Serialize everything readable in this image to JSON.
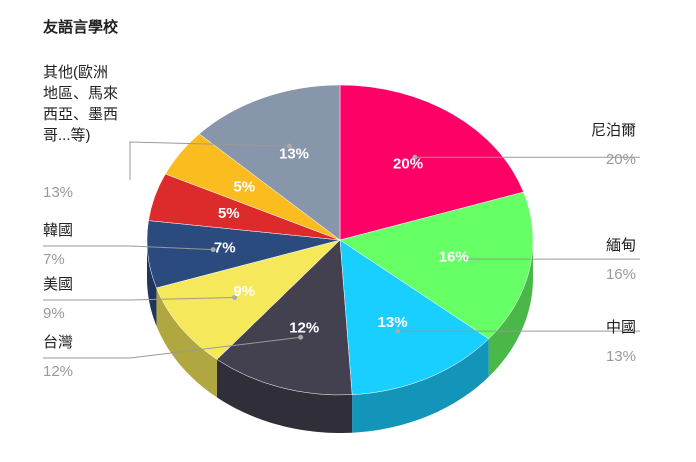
{
  "chart_data": {
    "type": "pie",
    "title": "友語言學校",
    "categories": [
      "尼泊爾",
      "緬甸",
      "中國",
      "台灣",
      "美國",
      "韓國",
      null,
      null,
      "其他(歐洲地區、馬來西亞、墨西哥...等)"
    ],
    "values": [
      20,
      16,
      13,
      12,
      9,
      7,
      5,
      5,
      13
    ],
    "value_labels": [
      "20%",
      "16%",
      "13%",
      "12%",
      "9%",
      "7%",
      "5%",
      "5%",
      "13%"
    ],
    "colors": [
      "#ff0066",
      "#66ff66",
      "#19cfff",
      "#43404f",
      "#f5e85a",
      "#2b4a7e",
      "#dd2a2a",
      "#fbbc1f",
      "#8796ab"
    ]
  }
}
